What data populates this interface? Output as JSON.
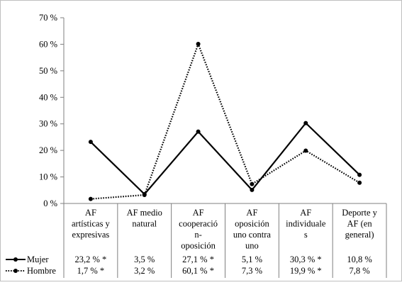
{
  "chart_data": {
    "type": "line",
    "title": "",
    "xlabel": "",
    "ylabel": "",
    "ylim": [
      0,
      70
    ],
    "y_ticks": [
      0,
      10,
      20,
      30,
      40,
      50,
      60,
      70
    ],
    "y_tick_labels": [
      "0 %",
      "10 %",
      "20 %",
      "30 %",
      "40 %",
      "50 %",
      "60 %",
      "70 %"
    ],
    "grid": false,
    "legend": "data-table-below",
    "categories": [
      [
        "AF",
        "artísticas y",
        "expresivas"
      ],
      [
        "AF medio",
        "natural"
      ],
      [
        "AF",
        "cooperació",
        "n-",
        "oposición"
      ],
      [
        "AF",
        "oposición",
        "uno contra",
        "uno"
      ],
      [
        "AF",
        "individuale",
        "s"
      ],
      [
        "Deporte y",
        "AF (en",
        "general)"
      ]
    ],
    "series": [
      {
        "name": "Mujer",
        "style": "solid",
        "color": "#000000",
        "values": [
          23.2,
          3.5,
          27.1,
          5.1,
          30.3,
          10.8
        ],
        "labels": [
          "23,2 % *",
          "3,5 %",
          "27,1 % *",
          "5,1 %",
          "30,3 % *",
          "10,8 %"
        ]
      },
      {
        "name": "Hombre",
        "style": "dotted",
        "color": "#000000",
        "values": [
          1.7,
          3.2,
          60.1,
          7.3,
          19.9,
          7.8
        ],
        "labels": [
          "1,7 % *",
          "3,2 %",
          "60,1 % *",
          "7,3 %",
          "19,9 % *",
          "7,8 %"
        ]
      }
    ]
  }
}
